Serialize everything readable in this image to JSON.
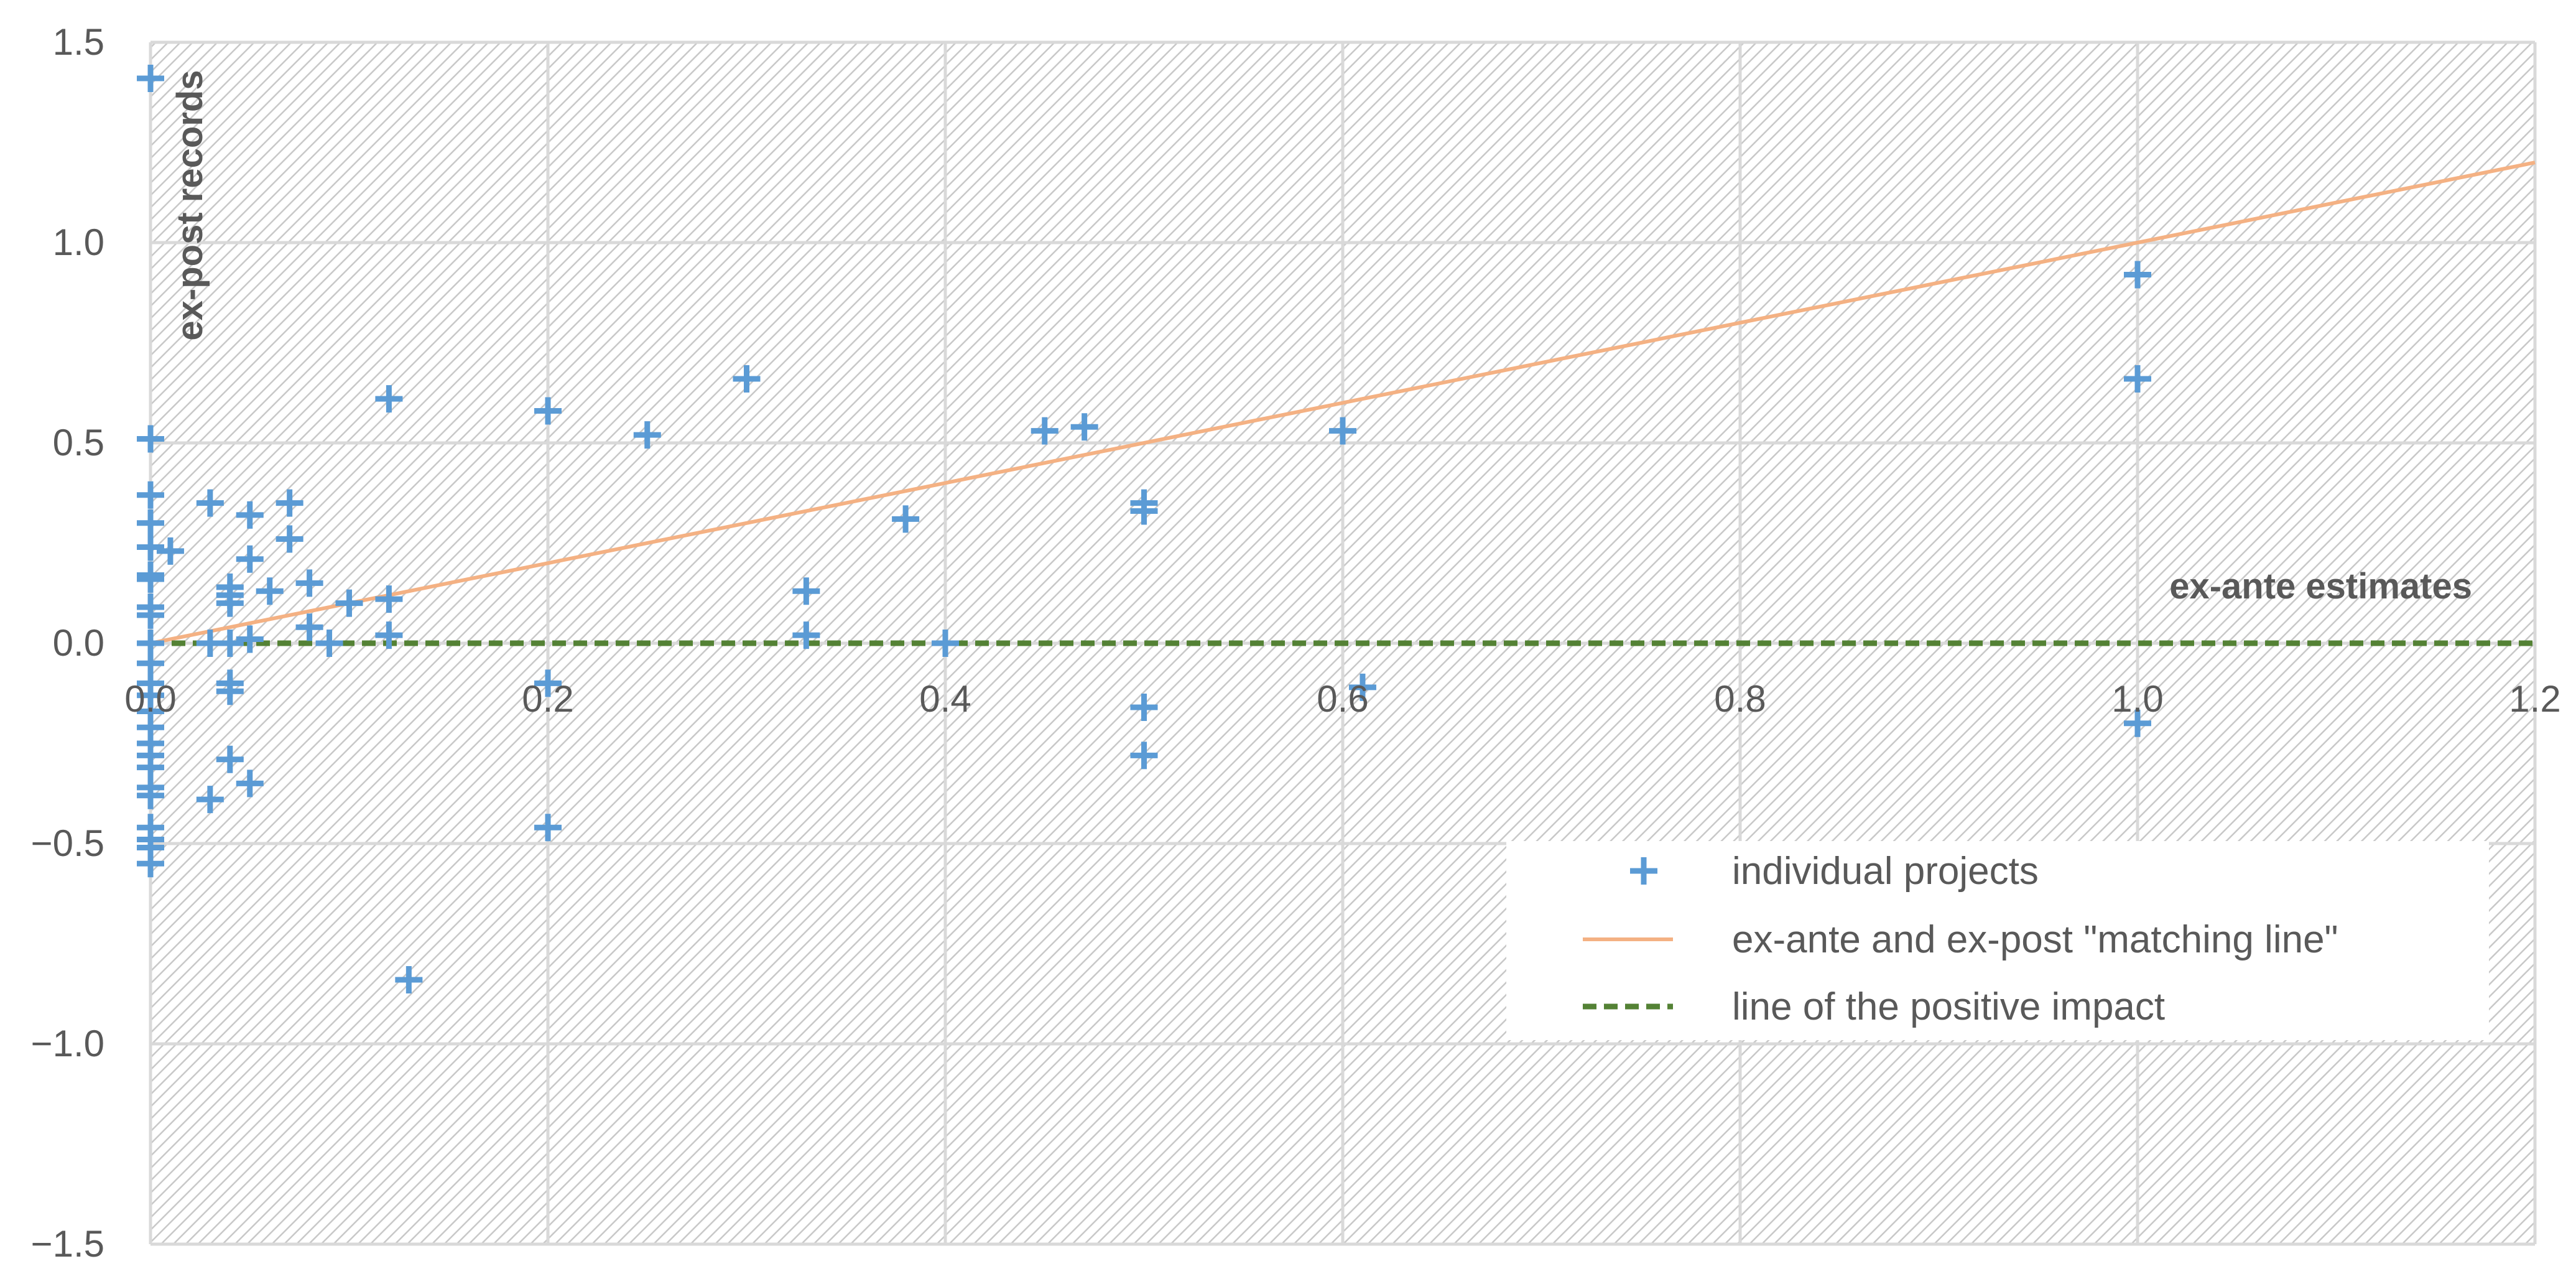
{
  "chart_data": {
    "type": "scatter",
    "xlabel": "ex-ante estimates",
    "ylabel": "ex-post records",
    "xlim": [
      0,
      1.2
    ],
    "ylim": [
      -1.5,
      1.5
    ],
    "x_ticks": [
      "0.0",
      "0.2",
      "0.4",
      "0.6",
      "0.8",
      "1.0",
      "1.2"
    ],
    "y_ticks": [
      "1.5",
      "1.0",
      "0.5",
      "0.0",
      "−0.5",
      "−1.0",
      "−1.5"
    ],
    "grid": true,
    "legend_position": "bottom-right",
    "colors": {
      "points": "#5b9bd5",
      "matching_line": "#f4b183",
      "impact_line": "#548235",
      "grid": "#d9d9d9",
      "hatch": "#c8c8c8",
      "text": "#595959"
    },
    "series": [
      {
        "name": "individual projects",
        "type": "scatter",
        "marker": "plus",
        "points": [
          [
            0.0,
            1.41
          ],
          [
            0.0,
            0.51
          ],
          [
            0.0,
            0.37
          ],
          [
            0.0,
            0.3
          ],
          [
            0.0,
            0.24
          ],
          [
            0.0,
            0.17
          ],
          [
            0.0,
            0.16
          ],
          [
            0.0,
            0.09
          ],
          [
            0.0,
            0.07
          ],
          [
            0.0,
            0.0
          ],
          [
            0.0,
            -0.05
          ],
          [
            0.0,
            -0.1
          ],
          [
            0.0,
            -0.13
          ],
          [
            0.0,
            -0.17
          ],
          [
            0.0,
            -0.21
          ],
          [
            0.0,
            -0.25
          ],
          [
            0.0,
            -0.28
          ],
          [
            0.0,
            -0.31
          ],
          [
            0.0,
            -0.36
          ],
          [
            0.0,
            -0.38
          ],
          [
            0.0,
            -0.46
          ],
          [
            0.0,
            -0.49
          ],
          [
            0.0,
            -0.51
          ],
          [
            0.0,
            -0.55
          ],
          [
            0.01,
            0.23
          ],
          [
            0.03,
            0.35
          ],
          [
            0.03,
            0.0
          ],
          [
            0.03,
            -0.39
          ],
          [
            0.04,
            0.14
          ],
          [
            0.04,
            0.12
          ],
          [
            0.04,
            0.1
          ],
          [
            0.04,
            0.0
          ],
          [
            0.04,
            -0.1
          ],
          [
            0.04,
            -0.12
          ],
          [
            0.04,
            -0.29
          ],
          [
            0.05,
            0.32
          ],
          [
            0.05,
            0.21
          ],
          [
            0.05,
            0.01
          ],
          [
            0.05,
            -0.35
          ],
          [
            0.06,
            0.13
          ],
          [
            0.07,
            0.35
          ],
          [
            0.07,
            0.26
          ],
          [
            0.08,
            0.15
          ],
          [
            0.08,
            0.04
          ],
          [
            0.09,
            0.0
          ],
          [
            0.1,
            0.1
          ],
          [
            0.12,
            0.61
          ],
          [
            0.12,
            0.11
          ],
          [
            0.12,
            0.02
          ],
          [
            0.13,
            -0.84
          ],
          [
            0.2,
            0.58
          ],
          [
            0.2,
            -0.1
          ],
          [
            0.2,
            -0.46
          ],
          [
            0.25,
            0.52
          ],
          [
            0.3,
            0.66
          ],
          [
            0.33,
            0.13
          ],
          [
            0.33,
            0.02
          ],
          [
            0.38,
            0.31
          ],
          [
            0.4,
            0.0
          ],
          [
            0.45,
            0.53
          ],
          [
            0.47,
            0.54
          ],
          [
            0.5,
            0.35
          ],
          [
            0.5,
            0.33
          ],
          [
            0.5,
            -0.16
          ],
          [
            0.5,
            -0.28
          ],
          [
            0.6,
            0.53
          ],
          [
            0.61,
            -0.11
          ],
          [
            1.0,
            0.92
          ],
          [
            1.0,
            0.66
          ],
          [
            1.0,
            -0.2
          ]
        ]
      },
      {
        "name": "ex-ante and ex-post \"matching line\"",
        "type": "line",
        "points": [
          [
            0.0,
            0.0
          ],
          [
            1.2,
            1.2
          ]
        ]
      },
      {
        "name": "line of the positive impact",
        "type": "line",
        "dashed": true,
        "points": [
          [
            0.0,
            0.0
          ],
          [
            1.2,
            0.0
          ]
        ]
      }
    ]
  }
}
